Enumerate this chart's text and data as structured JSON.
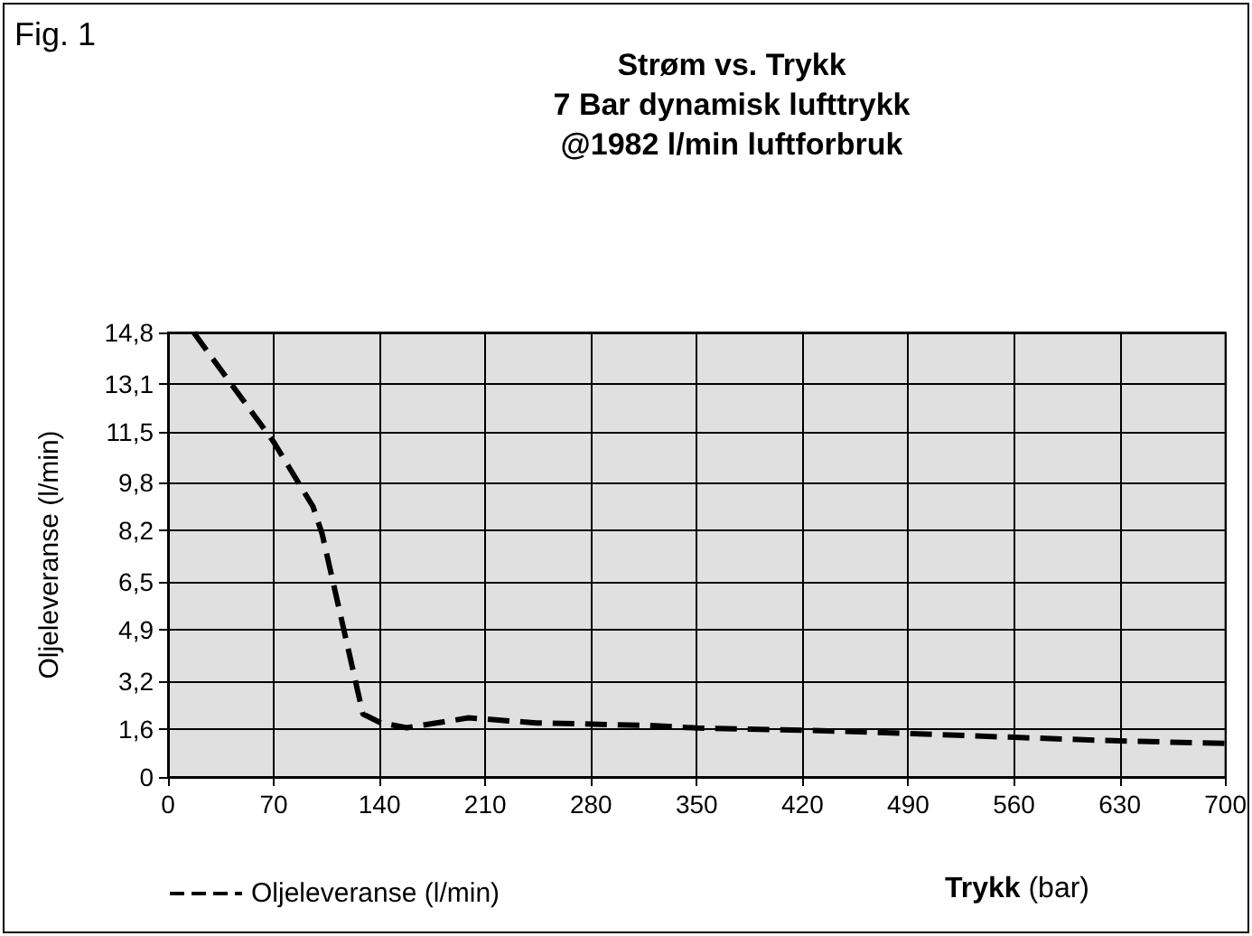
{
  "chart_data": {
    "type": "line",
    "title": "Strøm vs. Trykk\n7 Bar dynamisk lufttrykk\n@1982 l/min luftforbruk",
    "xlabel": "Trykk (bar)",
    "ylabel": "Oljeleveranse (l/min)",
    "annotations": [
      "Fig. 1"
    ],
    "series": [
      {
        "name": "Oljeleveranse (l/min)",
        "color": "#000000",
        "x": [
          17,
          30,
          70,
          96,
          102,
          129,
          141,
          158,
          199,
          244,
          316,
          350,
          420,
          490,
          560,
          630,
          700
        ],
        "values": [
          14.8,
          13.9,
          11.15,
          9.0,
          8.1,
          2.1,
          1.8,
          1.64,
          1.97,
          1.8,
          1.72,
          1.63,
          1.56,
          1.45,
          1.32,
          1.2,
          1.12
        ]
      }
    ],
    "xlim": [
      0,
      700
    ],
    "xticks": [
      0,
      70,
      140,
      210,
      280,
      350,
      420,
      490,
      560,
      630,
      700
    ],
    "ylim": [
      0,
      14.8
    ],
    "yticks": [
      0,
      {
        "value": 1.6,
        "label": "1,6"
      },
      {
        "value": 3.2,
        "label": "3,2"
      },
      {
        "value": 4.9,
        "label": "4,9"
      },
      {
        "value": 6.5,
        "label": "6,5"
      },
      {
        "value": 8.2,
        "label": "8,2"
      },
      {
        "value": 9.8,
        "label": "9,8"
      },
      {
        "value": 11.5,
        "label": "11,5"
      },
      {
        "value": 13.1,
        "label": "13,1"
      },
      {
        "value": 14.8,
        "label": "14,8"
      }
    ],
    "grid": true,
    "legend": "bottom left",
    "line_style": "dashed",
    "marker": "none"
  }
}
